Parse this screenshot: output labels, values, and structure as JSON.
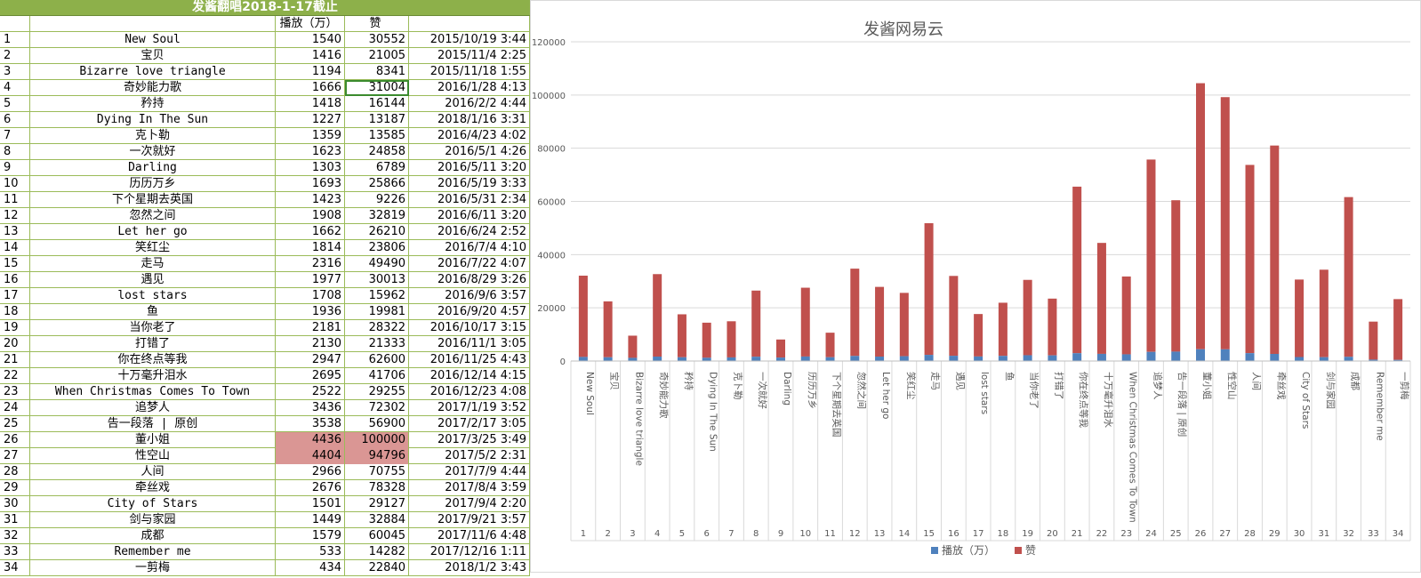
{
  "sheet": {
    "title": "发酱翻唱2018-1-17截止",
    "headers": [
      "",
      "",
      "播放（万）",
      "赞",
      ""
    ],
    "rows": [
      [
        "1",
        "New Soul",
        "1540",
        "30552",
        "2015/10/19 3:44"
      ],
      [
        "2",
        "宝贝",
        "1416",
        "21005",
        "2015/11/4 2:25"
      ],
      [
        "3",
        "Bizarre love triangle",
        "1194",
        "8341",
        "2015/11/18 1:55"
      ],
      [
        "4",
        "奇妙能力歌",
        "1666",
        "31004",
        "2016/1/28 4:13"
      ],
      [
        "5",
        "矜持",
        "1418",
        "16144",
        "2016/2/2 4:44"
      ],
      [
        "6",
        "Dying In The Sun",
        "1227",
        "13187",
        "2018/1/16 3:31"
      ],
      [
        "7",
        "克卜勒",
        "1359",
        "13585",
        "2016/4/23 4:02"
      ],
      [
        "8",
        "一次就好",
        "1623",
        "24858",
        "2016/5/1 4:26"
      ],
      [
        "9",
        "Darling",
        "1303",
        "6789",
        "2016/5/11 3:20"
      ],
      [
        "10",
        "历历万乡",
        "1693",
        "25866",
        "2016/5/19 3:33"
      ],
      [
        "11",
        "下个星期去英国",
        "1423",
        "9226",
        "2016/5/31 2:34"
      ],
      [
        "12",
        "忽然之间",
        "1908",
        "32819",
        "2016/6/11 3:20"
      ],
      [
        "13",
        "Let her go",
        "1662",
        "26210",
        "2016/6/24 2:52"
      ],
      [
        "14",
        "笑红尘",
        "1814",
        "23806",
        "2016/7/4 4:10"
      ],
      [
        "15",
        "走马",
        "2316",
        "49490",
        "2016/7/22 4:07"
      ],
      [
        "16",
        "遇见",
        "1977",
        "30013",
        "2016/8/29 3:26"
      ],
      [
        "17",
        "lost stars",
        "1708",
        "15962",
        "2016/9/6 3:57"
      ],
      [
        "18",
        "鱼",
        "1936",
        "19981",
        "2016/9/20 4:57"
      ],
      [
        "19",
        "当你老了",
        "2181",
        "28322",
        "2016/10/17 3:15"
      ],
      [
        "20",
        "打错了",
        "2130",
        "21333",
        "2016/11/1 3:05"
      ],
      [
        "21",
        "你在终点等我",
        "2947",
        "62600",
        "2016/11/25 4:43"
      ],
      [
        "22",
        "十万毫升泪水",
        "2695",
        "41706",
        "2016/12/14 4:15"
      ],
      [
        "23",
        "When Christmas Comes To Town",
        "2522",
        "29255",
        "2016/12/23 4:08"
      ],
      [
        "24",
        "追梦人",
        "3436",
        "72302",
        "2017/1/19 3:52"
      ],
      [
        "25",
        "告一段落  | 原创",
        "3538",
        "56900",
        "2017/2/17 3:05"
      ],
      [
        "26",
        "董小姐",
        "4436",
        "100000",
        "2017/3/25 3:49"
      ],
      [
        "27",
        "性空山",
        "4404",
        "94796",
        "2017/5/2 2:31"
      ],
      [
        "28",
        "人间",
        "2966",
        "70755",
        "2017/7/9 4:44"
      ],
      [
        "29",
        "牵丝戏",
        "2676",
        "78328",
        "2017/8/4 3:59"
      ],
      [
        "30",
        "City of Stars",
        "1501",
        "29127",
        "2017/9/4 2:20"
      ],
      [
        "31",
        "剑与家园",
        "1449",
        "32884",
        "2017/9/21 3:57"
      ],
      [
        "32",
        "成都",
        "1579",
        "60045",
        "2017/11/6 4:48"
      ],
      [
        "33",
        "Remember me",
        "533",
        "14282",
        "2017/12/16 1:11"
      ],
      [
        "34",
        "一剪梅",
        "434",
        "22840",
        "2018/1/2 3:43"
      ]
    ],
    "highlight_rows": [
      25,
      26
    ],
    "selected_cell": {
      "row": 3,
      "col": "like"
    }
  },
  "chart_data": {
    "type": "bar",
    "stacked": true,
    "title": "发酱网易云",
    "categories": [
      "New Soul",
      "宝贝",
      "Bizarre love triangle",
      "奇妙能力歌",
      "矜持",
      "Dying In The Sun",
      "克卜勒",
      "一次就好",
      "Darling",
      "历历万乡",
      "下个星期去英国",
      "忽然之间",
      "Let her go",
      "笑红尘",
      "走马",
      "遇见",
      "lost stars",
      "鱼",
      "当你老了",
      "打错了",
      "你在终点等我",
      "十万毫升泪水",
      "When Christmas Comes To Town",
      "追梦人",
      "告一段落 | 原创",
      "董小姐",
      "性空山",
      "人间",
      "牵丝戏",
      "City of Stars",
      "剑与家园",
      "成都",
      "Remember me",
      "一剪梅"
    ],
    "index_labels": [
      "1",
      "2",
      "3",
      "4",
      "5",
      "6",
      "7",
      "8",
      "9",
      "10",
      "11",
      "12",
      "13",
      "14",
      "15",
      "16",
      "17",
      "18",
      "19",
      "20",
      "21",
      "22",
      "23",
      "24",
      "25",
      "26",
      "27",
      "28",
      "29",
      "30",
      "31",
      "32",
      "33",
      "34"
    ],
    "series": [
      {
        "name": "播放（万）",
        "color": "#4f81bd",
        "values": [
          1540,
          1416,
          1194,
          1666,
          1418,
          1227,
          1359,
          1623,
          1303,
          1693,
          1423,
          1908,
          1662,
          1814,
          2316,
          1977,
          1708,
          1936,
          2181,
          2130,
          2947,
          2695,
          2522,
          3436,
          3538,
          4436,
          4404,
          2966,
          2676,
          1501,
          1449,
          1579,
          533,
          434
        ]
      },
      {
        "name": "赞",
        "color": "#c0504d",
        "values": [
          30552,
          21005,
          8341,
          31004,
          16144,
          13187,
          13585,
          24858,
          6789,
          25866,
          9226,
          32819,
          26210,
          23806,
          49490,
          30013,
          15962,
          19981,
          28322,
          21333,
          62600,
          41706,
          29255,
          72302,
          56900,
          100000,
          94796,
          70755,
          78328,
          29127,
          32884,
          60045,
          14282,
          22840
        ]
      }
    ],
    "ylim": [
      0,
      120000
    ],
    "yticks": [
      "0",
      "20000",
      "40000",
      "60000",
      "80000",
      "100000",
      "120000"
    ],
    "grid": true,
    "legend": "bottom"
  }
}
